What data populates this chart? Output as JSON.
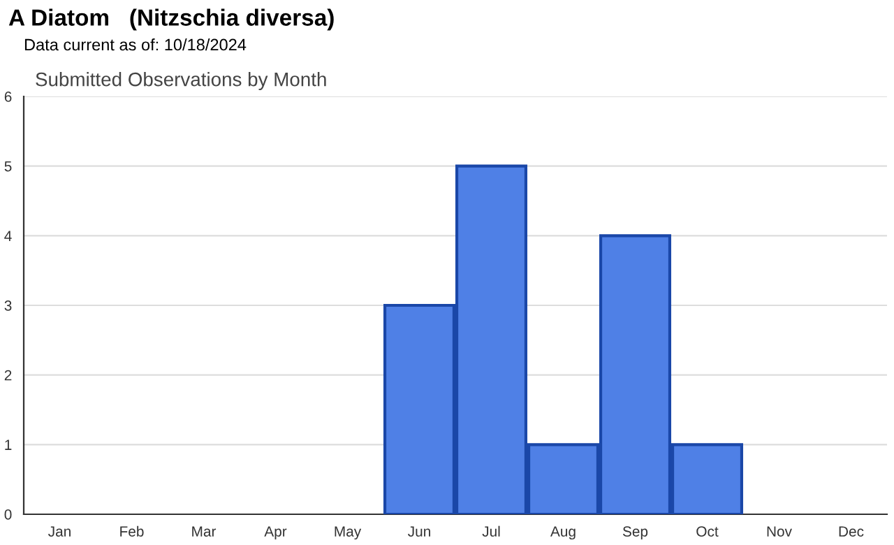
{
  "chart_data": {
    "type": "bar",
    "title": "A Diatom   (Nitzschia diversa)",
    "subtitle": "Data current as of: 10/18/2024",
    "annotations": [
      "Submitted Observations by Month"
    ],
    "categories": [
      "Jan",
      "Feb",
      "Mar",
      "Apr",
      "May",
      "Jun",
      "Jul",
      "Aug",
      "Sep",
      "Oct",
      "Nov",
      "Dec"
    ],
    "values": [
      0,
      0,
      0,
      0,
      0,
      3,
      5,
      1,
      4,
      1,
      0,
      0
    ],
    "color": "#4f80e6",
    "ylim": [
      0,
      6
    ],
    "yticks": [
      0,
      1,
      2,
      3,
      4,
      5,
      6
    ],
    "grid": "y",
    "legend": false
  }
}
